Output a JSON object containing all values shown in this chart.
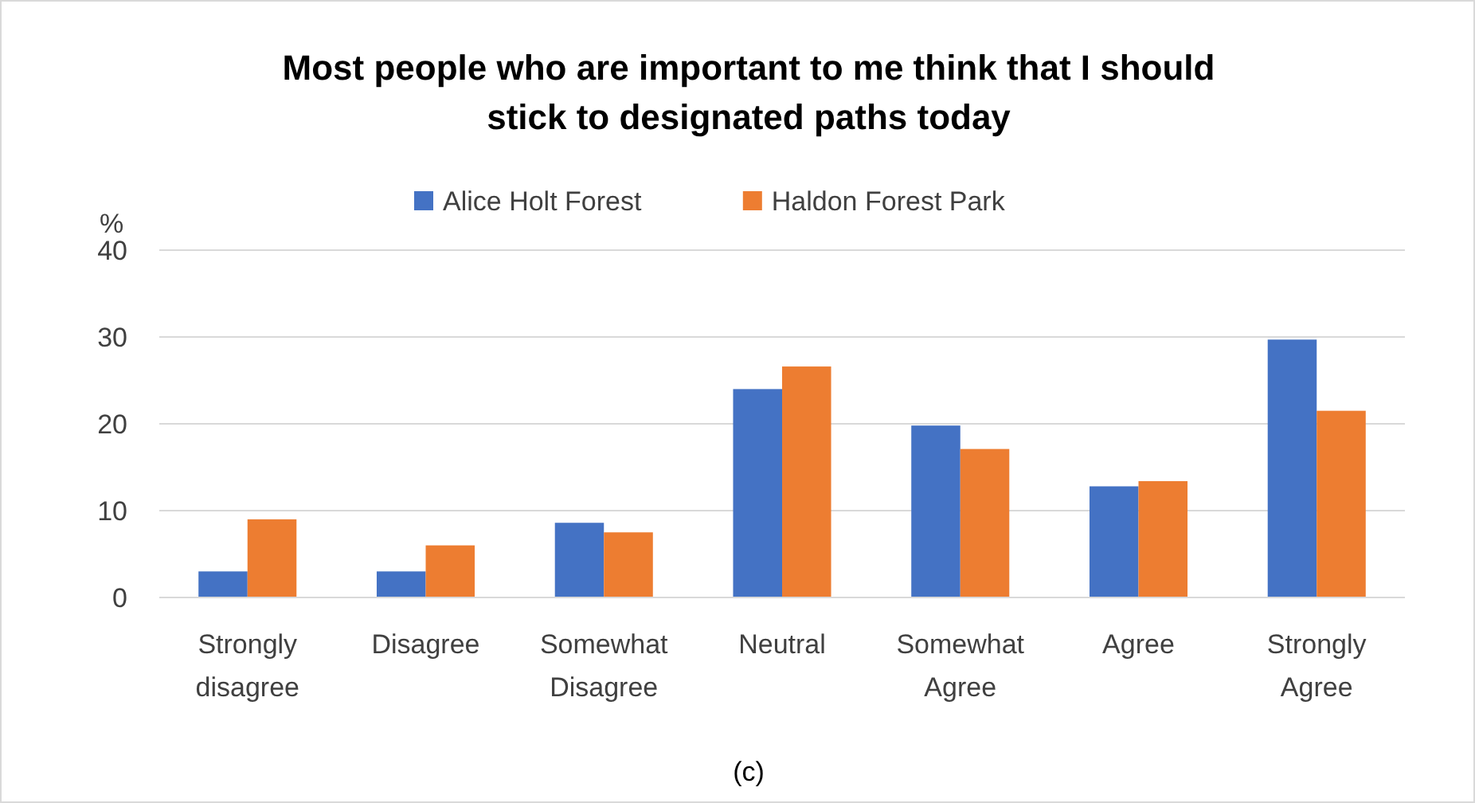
{
  "chart_data": {
    "type": "bar",
    "title": "Most people who are important to me think that I should stick to designated paths today",
    "ylabel": "%",
    "categories": [
      "Strongly disagree",
      "Disagree",
      "Somewhat Disagree",
      "Neutral",
      "Somewhat Agree",
      "Agree",
      "Strongly Agree"
    ],
    "series": [
      {
        "name": "Alice Holt Forest",
        "color": "#4472c4",
        "values": [
          3,
          3,
          8.6,
          24,
          19.8,
          12.8,
          29.7
        ]
      },
      {
        "name": "Haldon Forest Park",
        "color": "#ed7d31",
        "values": [
          9,
          6,
          7.5,
          26.6,
          17.1,
          13.4,
          21.5
        ]
      }
    ],
    "ylim": [
      0,
      40
    ],
    "yticks": [
      0,
      10,
      20,
      30,
      40
    ],
    "grid": "y",
    "legend": "top",
    "annotations": [
      "(c)"
    ]
  }
}
